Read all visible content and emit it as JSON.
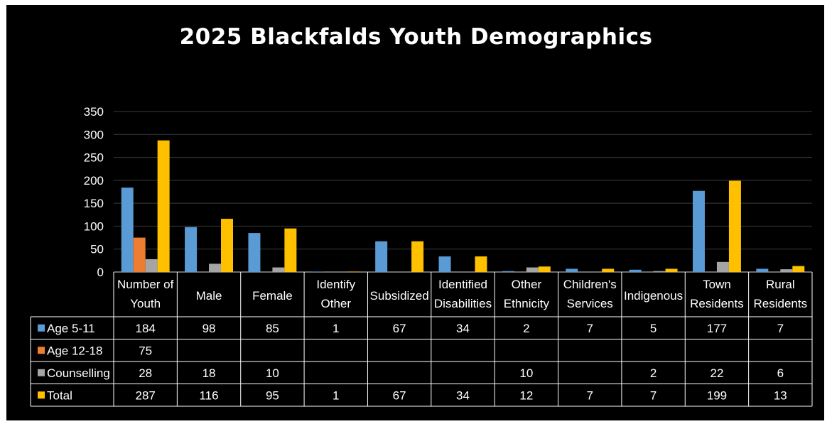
{
  "chart_data": {
    "type": "bar",
    "title": "2025 Blackfalds Youth Demographics",
    "categories": [
      [
        "Number of",
        "Youth"
      ],
      [
        "Male"
      ],
      [
        "Female"
      ],
      [
        "Identify",
        "Other"
      ],
      [
        "Subsidized"
      ],
      [
        "Identified",
        "Disabilities"
      ],
      [
        "Other",
        "Ethnicity"
      ],
      [
        "Children's",
        "Services"
      ],
      [
        "Indigenous"
      ],
      [
        "Town",
        "Residents"
      ],
      [
        "Rural",
        "Residents"
      ]
    ],
    "series": [
      {
        "name": "Age 5-11",
        "color": "#5b9bd5",
        "values": [
          184,
          98,
          85,
          1,
          67,
          34,
          2,
          7,
          5,
          177,
          7
        ]
      },
      {
        "name": "Age 12-18",
        "color": "#ed7d31",
        "values": [
          75,
          null,
          null,
          null,
          null,
          null,
          null,
          null,
          null,
          null,
          null
        ]
      },
      {
        "name": "Counselling",
        "color": "#a5a5a5",
        "values": [
          28,
          18,
          10,
          null,
          null,
          null,
          10,
          null,
          2,
          22,
          6
        ]
      },
      {
        "name": "Total",
        "color": "#ffc000",
        "values": [
          287,
          116,
          95,
          1,
          67,
          34,
          12,
          7,
          7,
          199,
          13
        ]
      }
    ],
    "ylim": [
      0,
      350
    ],
    "yticks": [
      0,
      50,
      100,
      150,
      200,
      250,
      300,
      350
    ],
    "grid": true,
    "legend": "data-table"
  }
}
